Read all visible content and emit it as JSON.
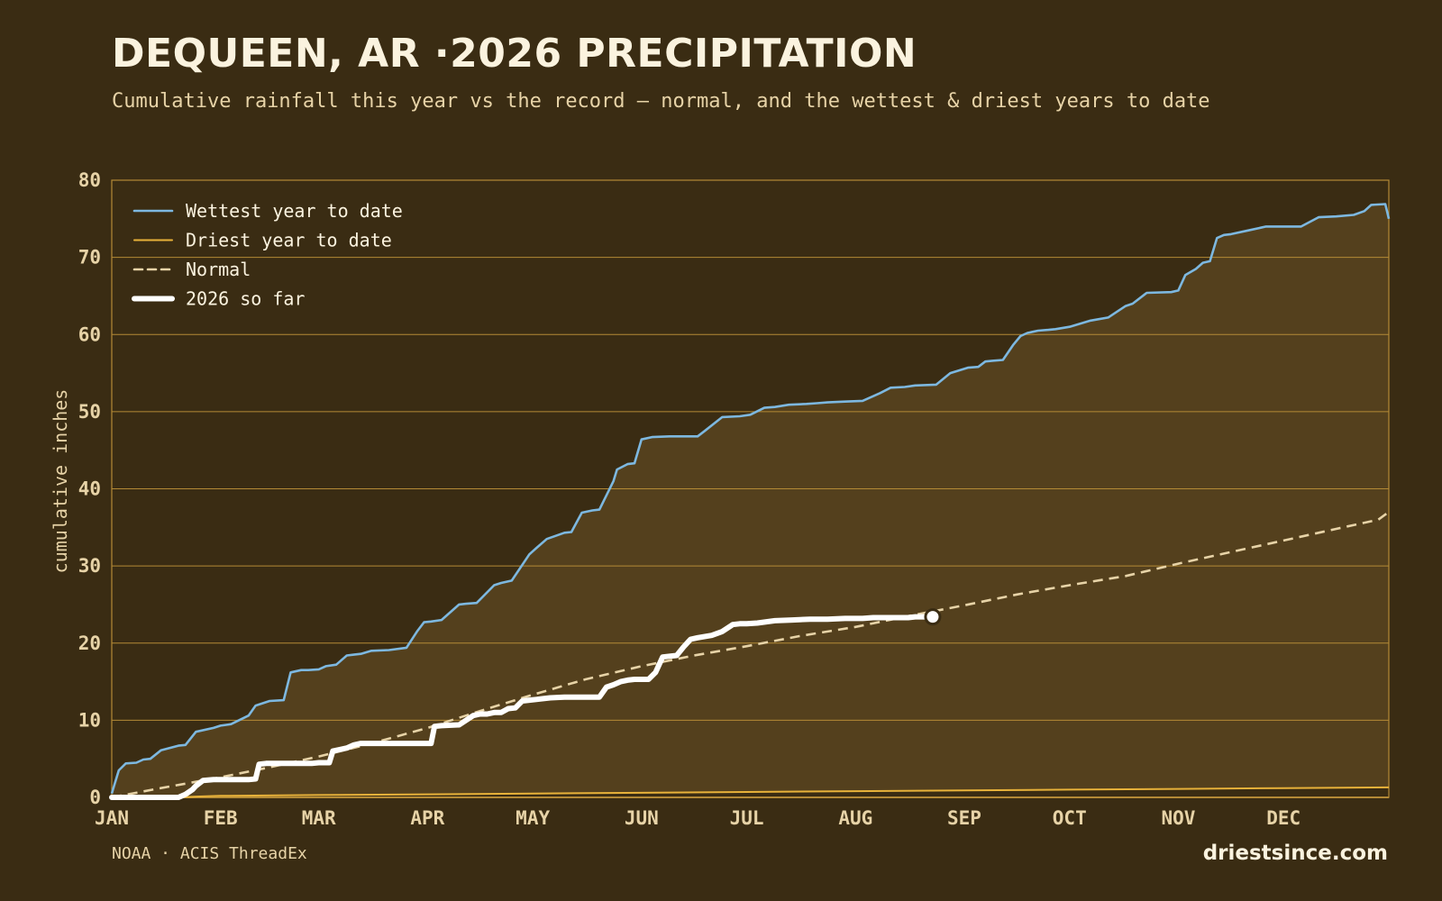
{
  "header": {
    "title": "DEQUEEN, AR ·2026 PRECIPITATION",
    "subtitle": "Cumulative rainfall this year vs the record — normal, and the wettest & driest years to date"
  },
  "footer": {
    "source": "NOAA · ACIS ThreadEx",
    "brand": "driestsince.com"
  },
  "colors": {
    "background": "#3a2c13",
    "band": "#54401d",
    "grid": "#b48a36",
    "wettest": "#7db8e0",
    "driest": "#e8b23a",
    "normal": "#e7d3a7",
    "current": "#ffffff"
  },
  "chart_data": {
    "type": "line",
    "title": "DEQUEEN, AR ·2026 PRECIPITATION",
    "xlabel": "",
    "ylabel": "cumulative inches",
    "xlim": [
      1,
      365
    ],
    "ylim": [
      0,
      80
    ],
    "yticks": [
      0,
      10,
      20,
      30,
      40,
      50,
      60,
      70,
      80
    ],
    "month_ticks": [
      {
        "label": "JAN",
        "day": 1
      },
      {
        "label": "FEB",
        "day": 32
      },
      {
        "label": "MAR",
        "day": 60
      },
      {
        "label": "APR",
        "day": 91
      },
      {
        "label": "MAY",
        "day": 121
      },
      {
        "label": "JUN",
        "day": 152
      },
      {
        "label": "JUL",
        "day": 182
      },
      {
        "label": "AUG",
        "day": 213
      },
      {
        "label": "SEP",
        "day": 244
      },
      {
        "label": "OCT",
        "day": 274
      },
      {
        "label": "NOV",
        "day": 305
      },
      {
        "label": "DEC",
        "day": 335
      }
    ],
    "legend_position": "top-left",
    "grid": true,
    "series": [
      {
        "name": "Wettest year to date",
        "style": "solid",
        "x": [
          1,
          3,
          5,
          8,
          10,
          12,
          15,
          20,
          22,
          25,
          30,
          32,
          35,
          40,
          42,
          46,
          50,
          52,
          55,
          57,
          60,
          62,
          65,
          68,
          70,
          72,
          75,
          80,
          85,
          88,
          90,
          92,
          95,
          100,
          102,
          105,
          110,
          112,
          115,
          120,
          122,
          125,
          130,
          132,
          135,
          138,
          140,
          144,
          145,
          148,
          150,
          152,
          155,
          160,
          168,
          170,
          175,
          180,
          183,
          187,
          190,
          194,
          199,
          202,
          205,
          210,
          215,
          220,
          223,
          227,
          230,
          236,
          240,
          245,
          248,
          250,
          252,
          255,
          258,
          260,
          262,
          265,
          268,
          270,
          274,
          280,
          285,
          290,
          292,
          296,
          303,
          305,
          307,
          310,
          312,
          314,
          316,
          318,
          320,
          325,
          330,
          340,
          345,
          350,
          355,
          358,
          360,
          364,
          365
        ],
        "y": [
          0.5,
          3.5,
          4.4,
          4.5,
          4.9,
          5.0,
          6.1,
          6.7,
          6.8,
          8.5,
          9.0,
          9.3,
          9.5,
          10.6,
          11.9,
          12.5,
          12.6,
          16.2,
          16.5,
          16.5,
          16.6,
          17.0,
          17.2,
          18.4,
          18.5,
          18.6,
          19.0,
          19.1,
          19.4,
          21.5,
          22.7,
          22.8,
          23.0,
          25.0,
          25.1,
          25.2,
          27.5,
          27.8,
          28.1,
          31.5,
          32.3,
          33.5,
          34.3,
          34.4,
          36.9,
          37.2,
          37.3,
          41.0,
          42.5,
          43.2,
          43.3,
          46.4,
          46.7,
          46.8,
          46.8,
          47.5,
          49.3,
          49.4,
          49.6,
          50.5,
          50.6,
          50.9,
          51.0,
          51.1,
          51.2,
          51.3,
          51.4,
          52.4,
          53.1,
          53.2,
          53.4,
          53.5,
          55.0,
          55.7,
          55.8,
          56.5,
          56.6,
          56.7,
          58.7,
          59.8,
          60.2,
          60.5,
          60.6,
          60.7,
          61.0,
          61.8,
          62.2,
          63.7,
          64.0,
          65.4,
          65.5,
          65.7,
          67.7,
          68.5,
          69.3,
          69.5,
          72.5,
          72.9,
          73.0,
          73.5,
          74.0,
          74.0,
          75.2,
          75.3,
          75.5,
          76.0,
          76.8,
          76.9,
          75.0
        ]
      },
      {
        "name": "Driest year to date",
        "style": "solid",
        "x": [
          1,
          20,
          25,
          32,
          60,
          91,
          121,
          152,
          182,
          213,
          244,
          274,
          305,
          335,
          365
        ],
        "y": [
          0,
          0,
          0.1,
          0.2,
          0.3,
          0.4,
          0.5,
          0.6,
          0.7,
          0.8,
          0.9,
          1.0,
          1.1,
          1.2,
          1.3
        ]
      },
      {
        "name": "Normal",
        "style": "dashed",
        "x": [
          1,
          15,
          32,
          46,
          60,
          75,
          91,
          106,
          121,
          136,
          152,
          167,
          182,
          197,
          213,
          228,
          244,
          259,
          274,
          290,
          305,
          320,
          335,
          350,
          362,
          365
        ],
        "y": [
          0,
          1.2,
          2.6,
          3.9,
          5.3,
          7.0,
          9.0,
          11.2,
          13.3,
          15.3,
          17.0,
          18.4,
          19.6,
          20.9,
          22.1,
          23.5,
          24.9,
          26.3,
          27.5,
          28.7,
          30.3,
          31.8,
          33.3,
          34.8,
          36.0,
          37.0
        ]
      },
      {
        "name": "2026 so far",
        "style": "solid-bold",
        "x": [
          1,
          20,
          22,
          24,
          25,
          27,
          30,
          33,
          35,
          40,
          42,
          43,
          45,
          48,
          50,
          55,
          58,
          60,
          63,
          64,
          66,
          68,
          70,
          72,
          75,
          80,
          85,
          90,
          92,
          93,
          95,
          100,
          102,
          104,
          106,
          108,
          110,
          112,
          114,
          116,
          118,
          120,
          122,
          124,
          126,
          130,
          135,
          140,
          142,
          144,
          146,
          148,
          150,
          154,
          156,
          158,
          160,
          162,
          164,
          166,
          168,
          172,
          175,
          178,
          180,
          182,
          185,
          190,
          195,
          200,
          205,
          210,
          212,
          215,
          218,
          220,
          222,
          225,
          228,
          230,
          232,
          235
        ],
        "y": [
          0,
          0,
          0.4,
          1.0,
          1.5,
          2.2,
          2.3,
          2.3,
          2.3,
          2.3,
          2.4,
          4.3,
          4.4,
          4.4,
          4.4,
          4.4,
          4.4,
          4.5,
          4.5,
          6.0,
          6.2,
          6.4,
          6.8,
          7.0,
          7.0,
          7.0,
          7.0,
          7.0,
          7.0,
          9.2,
          9.3,
          9.4,
          10.0,
          10.6,
          10.8,
          10.8,
          11.0,
          11.0,
          11.5,
          11.6,
          12.5,
          12.6,
          12.7,
          12.8,
          12.9,
          13.0,
          13.0,
          13.0,
          14.3,
          14.6,
          15.0,
          15.2,
          15.3,
          15.3,
          16.2,
          18.2,
          18.3,
          18.4,
          19.5,
          20.5,
          20.7,
          21.0,
          21.5,
          22.4,
          22.5,
          22.5,
          22.6,
          22.9,
          23.0,
          23.1,
          23.1,
          23.2,
          23.2,
          23.2,
          23.3,
          23.3,
          23.3,
          23.3,
          23.3,
          23.4,
          23.4,
          23.4
        ]
      }
    ]
  }
}
